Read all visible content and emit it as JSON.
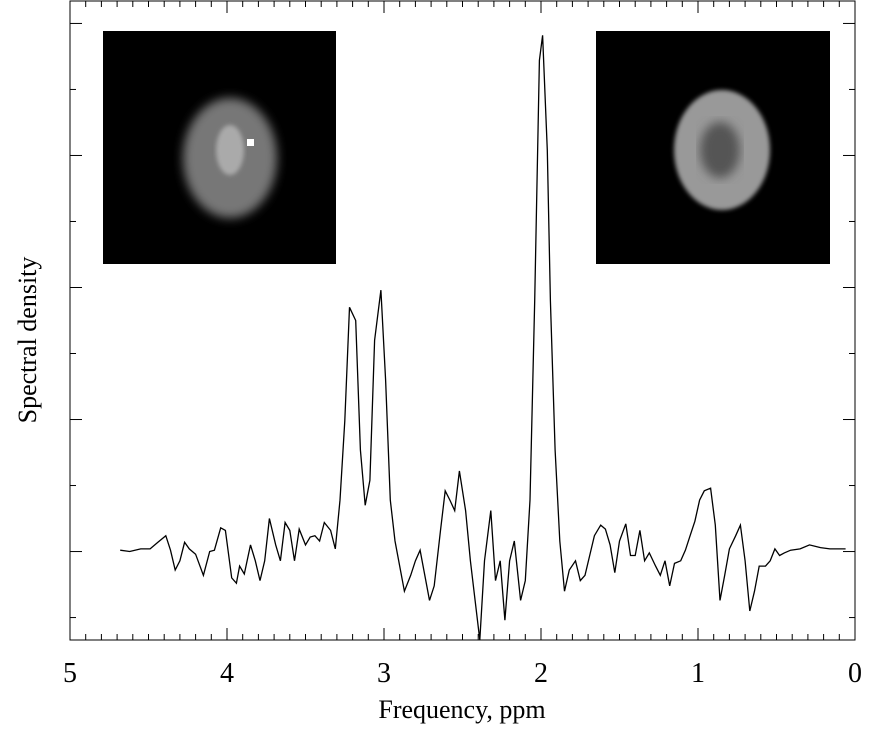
{
  "chart_data": {
    "type": "line",
    "x_label": "Frequency, ppm",
    "y_label": "Spectral density",
    "xlim": [
      5,
      0
    ],
    "xticks": [
      5,
      4,
      3,
      2,
      1,
      0
    ],
    "ylim": [
      -0.67,
      4.17
    ],
    "yticks": [
      -0.5,
      0,
      0.5,
      1,
      1.5,
      2,
      2.5,
      3,
      3.5,
      4
    ],
    "color": "#000000",
    "x": [
      4.68,
      4.62,
      4.55,
      4.49,
      4.44,
      4.39,
      4.36,
      4.33,
      4.3,
      4.27,
      4.24,
      4.2,
      4.15,
      4.11,
      4.08,
      4.04,
      4.01,
      3.97,
      3.94,
      3.92,
      3.89,
      3.85,
      3.82,
      3.79,
      3.76,
      3.73,
      3.69,
      3.66,
      3.63,
      3.6,
      3.57,
      3.54,
      3.5,
      3.47,
      3.44,
      3.41,
      3.38,
      3.34,
      3.31,
      3.28,
      3.25,
      3.22,
      3.18,
      3.15,
      3.12,
      3.09,
      3.06,
      3.02,
      2.99,
      2.96,
      2.93,
      2.9,
      2.87,
      2.83,
      2.8,
      2.77,
      2.74,
      2.71,
      2.68,
      2.64,
      2.61,
      2.58,
      2.55,
      2.52,
      2.48,
      2.45,
      2.42,
      2.39,
      2.36,
      2.32,
      2.29,
      2.26,
      2.23,
      2.2,
      2.17,
      2.13,
      2.1,
      2.07,
      2.04,
      2.01,
      1.99,
      1.96,
      1.94,
      1.91,
      1.88,
      1.85,
      1.82,
      1.78,
      1.75,
      1.72,
      1.69,
      1.66,
      1.62,
      1.59,
      1.56,
      1.53,
      1.5,
      1.46,
      1.43,
      1.4,
      1.37,
      1.34,
      1.31,
      1.27,
      1.24,
      1.21,
      1.18,
      1.15,
      1.11,
      1.08,
      1.05,
      1.02,
      0.99,
      0.96,
      0.92,
      0.89,
      0.86,
      0.83,
      0.8,
      0.76,
      0.73,
      0.7,
      0.67,
      0.64,
      0.61,
      0.57,
      0.54,
      0.51,
      0.48,
      0.45,
      0.41,
      0.35,
      0.29,
      0.22,
      0.16,
      0.06
    ],
    "values": [
      0.01,
      0,
      0.02,
      0.02,
      0.07,
      0.12,
      0.01,
      -0.14,
      -0.07,
      0.07,
      0.02,
      -0.02,
      -0.18,
      0,
      0.01,
      0.18,
      0.16,
      -0.2,
      -0.24,
      -0.11,
      -0.17,
      0.05,
      -0.07,
      -0.22,
      -0.07,
      0.25,
      0.05,
      -0.07,
      0.22,
      0.16,
      -0.07,
      0.17,
      0.05,
      0.11,
      0.12,
      0.08,
      0.22,
      0.16,
      0.02,
      0.39,
      0.99,
      1.85,
      1.75,
      0.77,
      0.35,
      0.54,
      1.6,
      1.98,
      1.3,
      0.39,
      0.08,
      -0.11,
      -0.3,
      -0.18,
      -0.07,
      0.01,
      -0.18,
      -0.37,
      -0.26,
      0.16,
      0.46,
      0.39,
      0.31,
      0.61,
      0.31,
      -0.07,
      -0.37,
      -0.67,
      -0.07,
      0.31,
      -0.22,
      -0.07,
      -0.52,
      -0.07,
      0.08,
      -0.37,
      -0.22,
      0.39,
      1.9,
      3.72,
      3.91,
      3.04,
      1.9,
      0.77,
      0.08,
      -0.3,
      -0.14,
      -0.07,
      -0.22,
      -0.18,
      -0.03,
      0.12,
      0.2,
      0.17,
      0.05,
      -0.16,
      0.08,
      0.21,
      -0.03,
      -0.03,
      0.16,
      -0.07,
      -0.01,
      -0.11,
      -0.18,
      -0.07,
      -0.26,
      -0.09,
      -0.07,
      0.01,
      0.12,
      0.23,
      0.39,
      0.46,
      0.48,
      0.2,
      -0.37,
      -0.18,
      0.02,
      0.12,
      0.2,
      -0.07,
      -0.45,
      -0.3,
      -0.11,
      -0.11,
      -0.07,
      0.02,
      -0.03,
      -0.01,
      0.01,
      0.02,
      0.05,
      0.03,
      0.02,
      0.02
    ]
  }
}
